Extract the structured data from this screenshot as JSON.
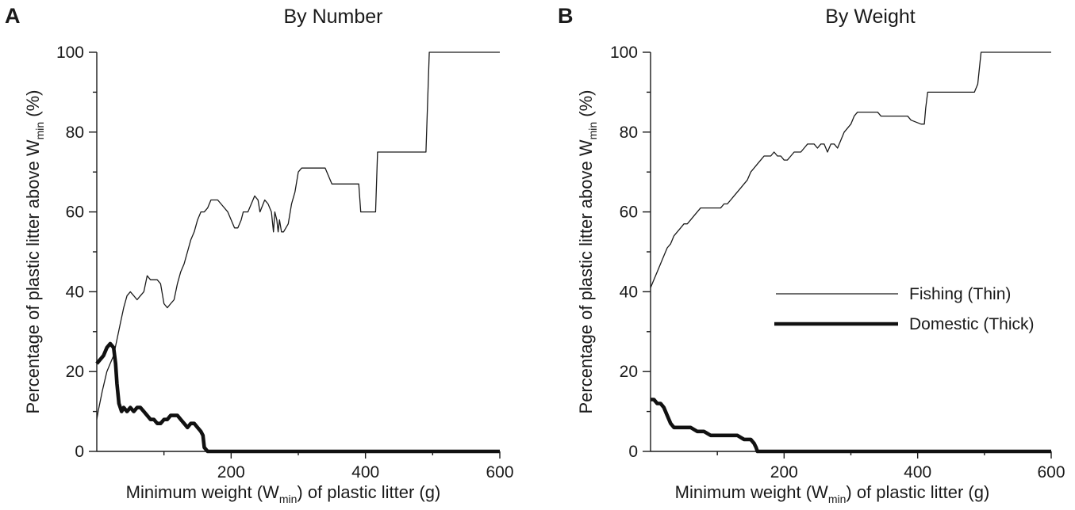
{
  "figure": {
    "panels": [
      {
        "letter": "A",
        "title": "By Number",
        "xlabel_parts": [
          "Minimum weight (W",
          "min",
          ") of plastic litter (g)"
        ],
        "ylabel_parts": [
          "Percentage of plastic litter above W",
          "min",
          " (%)"
        ]
      },
      {
        "letter": "B",
        "title": "By Weight",
        "xlabel_parts": [
          "Minimum weight (W",
          "min",
          ") of plastic litter (g)"
        ],
        "ylabel_parts": [
          "Percentage of plastic litter above W",
          "min",
          " (%)"
        ]
      }
    ],
    "legend": {
      "fishing_label": "Fishing (Thin)",
      "domestic_label": "Domestic (Thick)"
    }
  },
  "chart_data": [
    {
      "type": "line",
      "panel": "A",
      "title": "By Number",
      "xlabel": "Minimum weight (Wmin) of plastic litter (g)",
      "ylabel": "Percentage of plastic litter above Wmin (%)",
      "xlim": [
        0,
        600
      ],
      "ylim": [
        0,
        100
      ],
      "x_ticks": [
        200,
        400,
        600
      ],
      "x_tick_labels": [
        "200",
        "400",
        "600"
      ],
      "x_minor_ticks": [
        100,
        300,
        500
      ],
      "y_ticks": [
        0,
        20,
        40,
        60,
        80,
        100
      ],
      "y_tick_labels": [
        "0",
        "20",
        "40",
        "60",
        "80",
        "100"
      ],
      "y_minor_ticks": [
        10,
        30,
        50,
        70,
        90
      ],
      "legend": null,
      "series": [
        {
          "name": "Fishing",
          "style": "thin",
          "x": [
            0,
            2,
            8,
            15,
            20,
            25,
            30,
            35,
            40,
            45,
            50,
            55,
            60,
            65,
            70,
            75,
            80,
            85,
            90,
            95,
            100,
            105,
            110,
            115,
            120,
            125,
            130,
            135,
            140,
            145,
            150,
            155,
            160,
            165,
            170,
            175,
            180,
            185,
            195,
            205,
            210,
            215,
            218,
            225,
            235,
            240,
            243,
            250,
            255,
            260,
            263,
            265,
            268,
            270,
            272,
            275,
            278,
            285,
            290,
            295,
            300,
            305,
            310,
            340,
            350,
            353,
            390,
            393,
            415,
            418,
            490,
            495,
            600
          ],
          "y": [
            8,
            10,
            15,
            20,
            22,
            24,
            28,
            32,
            36,
            39,
            40,
            39,
            38,
            39,
            40,
            44,
            43,
            43,
            43,
            42,
            37,
            36,
            37,
            38,
            42,
            45,
            47,
            50,
            53,
            55,
            58,
            60,
            60,
            61,
            63,
            63,
            63,
            62,
            60,
            56,
            56,
            58,
            60,
            60,
            64,
            63,
            60,
            63,
            62,
            60,
            55,
            60,
            58,
            55,
            58,
            55,
            55,
            57,
            62,
            65,
            70,
            71,
            71,
            71,
            67,
            67,
            67,
            60,
            60,
            75,
            75,
            100,
            100
          ]
        },
        {
          "name": "Domestic",
          "style": "thick",
          "x": [
            0,
            5,
            10,
            15,
            20,
            25,
            28,
            30,
            33,
            37,
            40,
            45,
            50,
            55,
            60,
            65,
            70,
            75,
            80,
            85,
            90,
            95,
            100,
            105,
            110,
            115,
            120,
            125,
            130,
            135,
            140,
            145,
            150,
            155,
            158,
            160,
            165,
            600
          ],
          "y": [
            22,
            23,
            24,
            26,
            27,
            26,
            22,
            17,
            12,
            10,
            11,
            10,
            11,
            10,
            11,
            11,
            10,
            9,
            8,
            8,
            7,
            7,
            8,
            8,
            9,
            9,
            9,
            8,
            7,
            6,
            7,
            7,
            6,
            5,
            4,
            1,
            0,
            0
          ]
        }
      ]
    },
    {
      "type": "line",
      "panel": "B",
      "title": "By Weight",
      "xlabel": "Minimum weight (Wmin) of plastic litter (g)",
      "ylabel": "Percentage of plastic litter above Wmin (%)",
      "xlim": [
        0,
        600
      ],
      "ylim": [
        0,
        100
      ],
      "x_ticks": [
        200,
        400,
        600
      ],
      "x_tick_labels": [
        "200",
        "400",
        "600"
      ],
      "x_minor_ticks": [
        100,
        300,
        500
      ],
      "y_ticks": [
        0,
        20,
        40,
        60,
        80,
        100
      ],
      "y_tick_labels": [
        "0",
        "20",
        "40",
        "60",
        "80",
        "100"
      ],
      "y_minor_ticks": [
        10,
        30,
        50,
        70,
        90
      ],
      "legend": {
        "placement": "right-middle",
        "entries": [
          "Fishing (Thin)",
          "Domestic (Thick)"
        ]
      },
      "series": [
        {
          "name": "Fishing (Thin)",
          "style": "thin",
          "x": [
            0,
            5,
            10,
            15,
            20,
            25,
            30,
            35,
            40,
            45,
            50,
            55,
            60,
            65,
            70,
            75,
            80,
            85,
            90,
            95,
            100,
            105,
            110,
            115,
            120,
            125,
            130,
            135,
            140,
            145,
            150,
            155,
            160,
            165,
            170,
            175,
            180,
            185,
            190,
            195,
            200,
            205,
            210,
            215,
            220,
            225,
            230,
            235,
            240,
            245,
            250,
            255,
            260,
            265,
            270,
            275,
            280,
            285,
            290,
            295,
            300,
            305,
            310,
            340,
            345,
            350,
            385,
            390,
            405,
            410,
            412,
            415,
            480,
            485,
            490,
            495,
            600
          ],
          "y": [
            41,
            43,
            45,
            47,
            49,
            51,
            52,
            54,
            55,
            56,
            57,
            57,
            58,
            59,
            60,
            61,
            61,
            61,
            61,
            61,
            61,
            61,
            62,
            62,
            63,
            64,
            65,
            66,
            67,
            68,
            70,
            71,
            72,
            73,
            74,
            74,
            74,
            75,
            74,
            74,
            73,
            73,
            74,
            75,
            75,
            75,
            76,
            77,
            77,
            77,
            76,
            77,
            77,
            75,
            77,
            77,
            76,
            78,
            80,
            81,
            82,
            84,
            85,
            85,
            84,
            84,
            84,
            83,
            82,
            82,
            86,
            90,
            90,
            90,
            92,
            100,
            100
          ]
        },
        {
          "name": "Domestic (Thick)",
          "style": "thick",
          "x": [
            0,
            5,
            10,
            15,
            20,
            25,
            30,
            35,
            40,
            50,
            60,
            70,
            80,
            90,
            100,
            110,
            120,
            130,
            140,
            145,
            150,
            155,
            158,
            160,
            165,
            600
          ],
          "y": [
            13,
            13,
            12,
            12,
            11,
            9,
            7,
            6,
            6,
            6,
            6,
            5,
            5,
            4,
            4,
            4,
            4,
            4,
            3,
            3,
            3,
            2,
            1,
            0,
            0,
            0
          ]
        }
      ]
    }
  ]
}
